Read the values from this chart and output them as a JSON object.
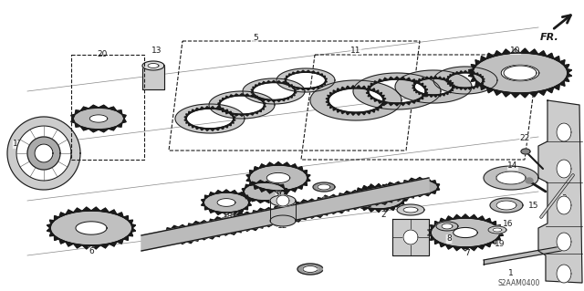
{
  "diagram_code": "S2AAM0400",
  "fr_label": "FR.",
  "background_color": "#ffffff",
  "line_color": "#1a1a1a",
  "label_fontsize": 6.5,
  "gear_fill": "#d8d8d8",
  "gear_fill2": "#c0c0c0",
  "shaft_fill": "#bbbbbb"
}
